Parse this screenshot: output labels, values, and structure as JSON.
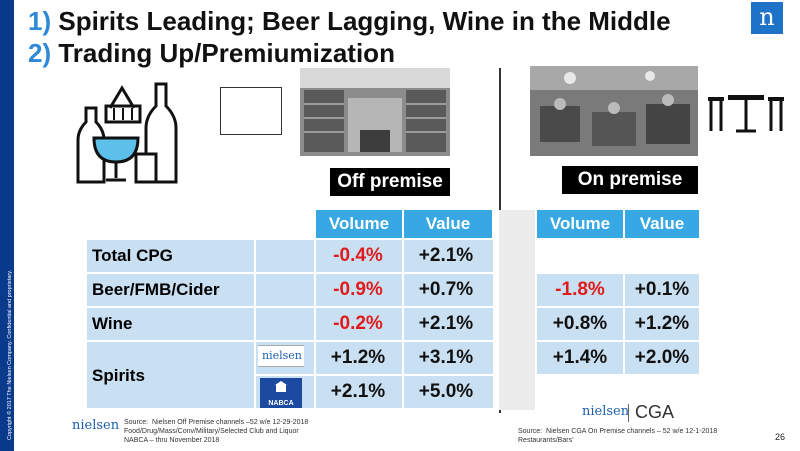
{
  "sidebar": {
    "copyright": "Copyright © 2017 The Nielsen Company. Confidential and proprietary."
  },
  "title": {
    "line1_num": "1)",
    "line1_text": "Spirits Leading; Beer Lagging, Wine in the Middle",
    "line2_num": "2)",
    "line2_text": "Trading Up/Premiumization"
  },
  "logo": {
    "glyph": "n",
    "icon": "nielsen-n-logo-icon",
    "color": "#1e73c8"
  },
  "labels": {
    "off_premise": "Off premise",
    "on_premise": "On premise"
  },
  "headers": {
    "volume": "Volume",
    "value": "Value"
  },
  "rows": [
    {
      "label": "Total CPG",
      "off_volume": "-0.4%",
      "off_value": "+2.1%",
      "on_volume": "",
      "on_value": ""
    },
    {
      "label": "Beer/FMB/Cider",
      "off_volume": "-0.9%",
      "off_value": "+0.7%",
      "on_volume": "-1.8%",
      "on_value": "+0.1%"
    },
    {
      "label": "Wine",
      "off_volume": "-0.2%",
      "off_value": "+2.1%",
      "on_volume": "+0.8%",
      "on_value": "+1.2%"
    },
    {
      "label": "Spirits",
      "off_volume": "+1.2%",
      "off_value": "+3.1%",
      "on_volume": "+1.4%",
      "on_value": "+2.0%",
      "sub_source_1": "nielsen",
      "off_volume_2": "+2.1%",
      "off_value_2": "+5.0%",
      "sub_source_2": "NABCA"
    }
  ],
  "footer": {
    "nielsen_word": "nielsen",
    "source_left": "Source:  Nielsen Off Premise channels –52 w/e 12-29-2018\nFood/Drug/Mass/Conv/Military/Selected Club and Liquor\nNABCA – thru November 2018",
    "source_right": "Source:  Nielsen CGA On Premise channels – 52 w/e 12-1-2018\nRestaurants/Bars’",
    "cga_nielsen": "nielsen",
    "cga": "CGA",
    "page": "26"
  },
  "colors": {
    "header_blue": "#37a8e3",
    "row_blue": "#c9dff2",
    "negative": "#e01b1b",
    "sidebar": "#0a3a8c",
    "title_num": "#2e8ad8"
  }
}
